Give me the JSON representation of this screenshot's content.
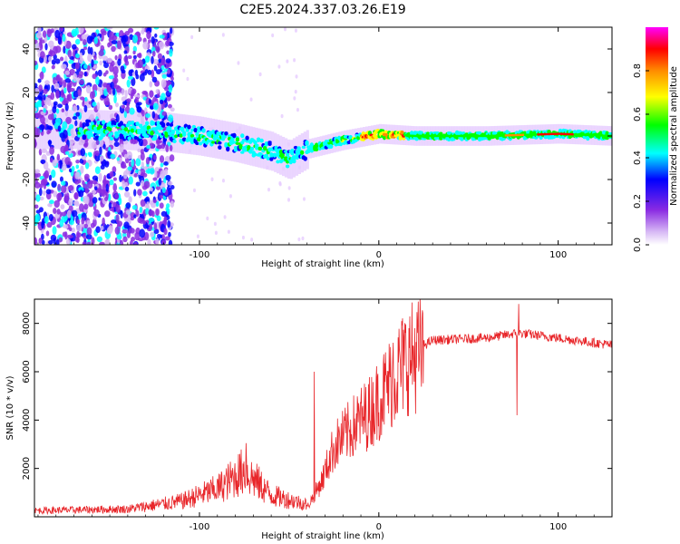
{
  "title": "C2E5.2024.337.03.26.E19",
  "chart_data": [
    {
      "type": "heatmap",
      "xlabel": "Height of straight line (km)",
      "ylabel": "Frequency (Hz)",
      "xlim": [
        -192,
        130
      ],
      "ylim": [
        -50,
        50
      ],
      "xticks": [
        -100,
        0,
        100
      ],
      "yticks": [
        -40,
        -20,
        0,
        20,
        40
      ],
      "colorbar": {
        "label": "Normalized spectral amplitude",
        "range": [
          0,
          1
        ],
        "ticks": [
          "0.0",
          "0.2",
          "0.4",
          "0.6",
          "0.8"
        ],
        "colors": [
          "#f4e6ff",
          "#8a2be2",
          "#0000ff",
          "#00ffff",
          "#00ff00",
          "#ffff00",
          "#ff8c00",
          "#ff0000",
          "#ff00ff"
        ]
      },
      "ridge": {
        "description_points": [
          {
            "x": -160,
            "y": 3
          },
          {
            "x": -120,
            "y": 2
          },
          {
            "x": -100,
            "y": 0
          },
          {
            "x": -80,
            "y": -3
          },
          {
            "x": -60,
            "y": -7
          },
          {
            "x": -50,
            "y": -11
          },
          {
            "x": -40,
            "y": -6
          },
          {
            "x": -20,
            "y": -2
          },
          {
            "x": 0,
            "y": 1
          },
          {
            "x": 20,
            "y": 0
          },
          {
            "x": 60,
            "y": 0
          },
          {
            "x": 100,
            "y": 1
          },
          {
            "x": 130,
            "y": 0
          }
        ]
      }
    },
    {
      "type": "line",
      "xlabel": "Height of straight line (km)",
      "ylabel": "SNR (10 * v/v)",
      "xlim": [
        -192,
        130
      ],
      "ylim": [
        0,
        9000
      ],
      "xticks": [
        -100,
        0,
        100
      ],
      "yticks": [
        2000,
        4000,
        6000,
        8000
      ],
      "series_color": "#e8262a",
      "envelope": [
        {
          "x": -192,
          "y": 200
        },
        {
          "x": -140,
          "y": 250
        },
        {
          "x": -110,
          "y": 500
        },
        {
          "x": -90,
          "y": 900
        },
        {
          "x": -75,
          "y": 1500
        },
        {
          "x": -60,
          "y": 700
        },
        {
          "x": -40,
          "y": 400
        },
        {
          "x": -32,
          "y": 1500
        },
        {
          "x": -25,
          "y": 3000
        },
        {
          "x": -15,
          "y": 3800
        },
        {
          "x": -5,
          "y": 4500
        },
        {
          "x": 5,
          "y": 5600
        },
        {
          "x": 15,
          "y": 6700
        },
        {
          "x": 30,
          "y": 7300
        },
        {
          "x": 60,
          "y": 7400
        },
        {
          "x": 78,
          "y": 7600
        },
        {
          "x": 100,
          "y": 7400
        },
        {
          "x": 130,
          "y": 7100
        }
      ],
      "notable_points": [
        {
          "x": -74,
          "y": 3050
        },
        {
          "x": -36,
          "y": 6000
        },
        {
          "x": 8,
          "y": 7200
        },
        {
          "x": 77,
          "y": 4200
        },
        {
          "x": 78,
          "y": 8800
        }
      ]
    }
  ]
}
